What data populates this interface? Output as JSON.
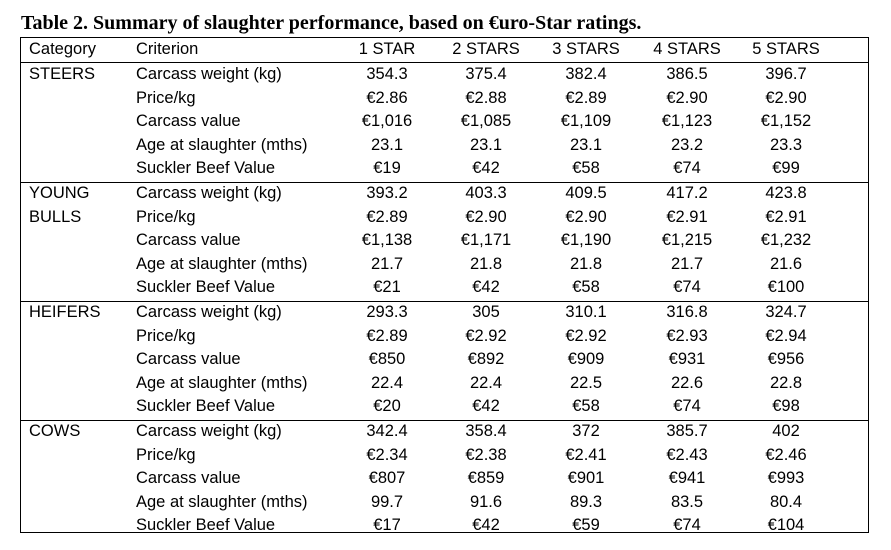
{
  "caption": "Table 2. Summary of slaughter performance, based on €uro-Star ratings.",
  "header": [
    "Category",
    "Criterion",
    "1 STAR",
    "2 STARS",
    "3 STARS",
    "4 STARS",
    "5 STARS"
  ],
  "groups": [
    {
      "category": [
        "STEERS"
      ],
      "rows": [
        {
          "criterion": "Carcass weight (kg)",
          "values": [
            "354.3",
            "375.4",
            "382.4",
            "386.5",
            "396.7"
          ]
        },
        {
          "criterion": "Price/kg",
          "values": [
            "€2.86",
            "€2.88",
            "€2.89",
            "€2.90",
            "€2.90"
          ]
        },
        {
          "criterion": "Carcass value",
          "values": [
            "€1,016",
            "€1,085",
            "€1,109",
            "€1,123",
            "€1,152"
          ]
        },
        {
          "criterion": "Age at slaughter (mths)",
          "values": [
            "23.1",
            "23.1",
            "23.1",
            "23.2",
            "23.3"
          ]
        },
        {
          "criterion": "Suckler Beef Value",
          "values": [
            "€19",
            "€42",
            "€58",
            "€74",
            "€99"
          ]
        }
      ]
    },
    {
      "category": [
        "YOUNG",
        "BULLS"
      ],
      "rows": [
        {
          "criterion": "Carcass weight (kg)",
          "values": [
            "393.2",
            "403.3",
            "409.5",
            "417.2",
            "423.8"
          ]
        },
        {
          "criterion": "Price/kg",
          "values": [
            "€2.89",
            "€2.90",
            "€2.90",
            "€2.91",
            "€2.91"
          ]
        },
        {
          "criterion": "Carcass value",
          "values": [
            "€1,138",
            "€1,171",
            "€1,190",
            "€1,215",
            "€1,232"
          ]
        },
        {
          "criterion": "Age at slaughter (mths)",
          "values": [
            "21.7",
            "21.8",
            "21.8",
            "21.7",
            "21.6"
          ]
        },
        {
          "criterion": "Suckler Beef Value",
          "values": [
            "€21",
            "€42",
            "€58",
            "€74",
            "€100"
          ]
        }
      ]
    },
    {
      "category": [
        "HEIFERS"
      ],
      "rows": [
        {
          "criterion": "Carcass weight (kg)",
          "values": [
            "293.3",
            "305",
            "310.1",
            "316.8",
            "324.7"
          ]
        },
        {
          "criterion": "Price/kg",
          "values": [
            "€2.89",
            "€2.92",
            "€2.92",
            "€2.93",
            "€2.94"
          ]
        },
        {
          "criterion": "Carcass value",
          "values": [
            "€850",
            "€892",
            "€909",
            "€931",
            "€956"
          ]
        },
        {
          "criterion": "Age at slaughter (mths)",
          "values": [
            "22.4",
            "22.4",
            "22.5",
            "22.6",
            "22.8"
          ]
        },
        {
          "criterion": "Suckler Beef Value",
          "values": [
            "€20",
            "€42",
            "€58",
            "€74",
            "€98"
          ]
        }
      ]
    },
    {
      "category": [
        "COWS"
      ],
      "rows": [
        {
          "criterion": "Carcass weight (kg)",
          "values": [
            "342.4",
            "358.4",
            "372",
            "385.7",
            "402"
          ]
        },
        {
          "criterion": "Price/kg",
          "values": [
            "€2.34",
            "€2.38",
            "€2.41",
            "€2.43",
            "€2.46"
          ]
        },
        {
          "criterion": "Carcass value",
          "values": [
            "€807",
            "€859",
            "€901",
            "€941",
            "€993"
          ]
        },
        {
          "criterion": "Age at slaughter (mths)",
          "values": [
            "99.7",
            "91.6",
            "89.3",
            "83.5",
            "80.4"
          ]
        },
        {
          "criterion": "Suckler Beef Value",
          "values": [
            "€17",
            "€42",
            "€59",
            "€74",
            "€104"
          ]
        }
      ]
    }
  ]
}
